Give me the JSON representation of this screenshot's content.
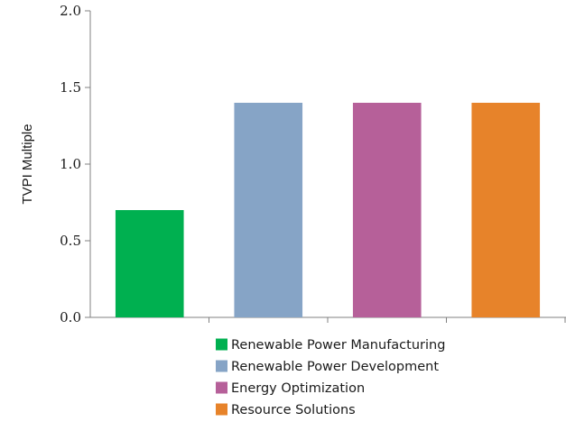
{
  "chart_data": {
    "type": "bar",
    "title": "",
    "xlabel": "",
    "ylabel": "TVPI Multiple",
    "ylim": [
      0,
      2.0
    ],
    "yticks": [
      "0.0",
      "0.5",
      "1.0",
      "1.5",
      "2.0"
    ],
    "categories": [
      "Renewable Power Manufacturing",
      "Renewable Power Development",
      "Energy Optimization",
      "Resource Solutions"
    ],
    "values": [
      0.7,
      1.4,
      1.4,
      1.4
    ],
    "colors": [
      "#00b050",
      "#86a4c6",
      "#b66099",
      "#e7832a"
    ],
    "grid": false,
    "legend_position": "bottom"
  }
}
